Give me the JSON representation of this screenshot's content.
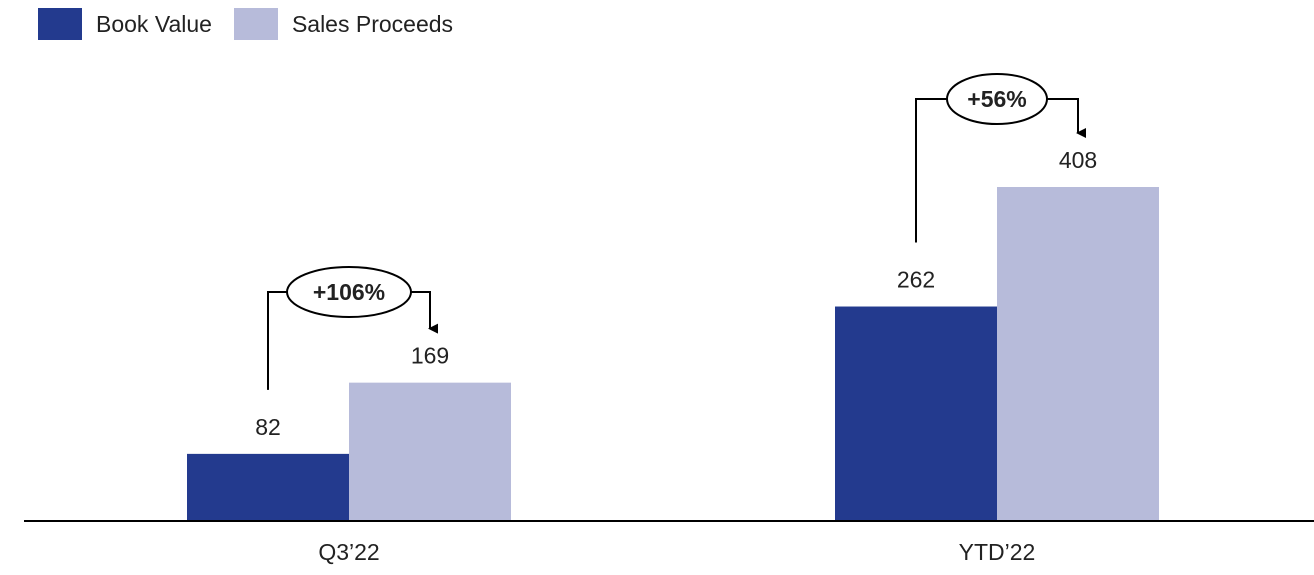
{
  "colors": {
    "book_value": "#233A8E",
    "sales_proceeds": "#B7BBDA",
    "axis": "#000000",
    "text": "#222222"
  },
  "legend": [
    {
      "name": "Book Value",
      "color": "#233A8E"
    },
    {
      "name": "Sales Proceeds",
      "color": "#B7BBDA"
    }
  ],
  "chart_data": {
    "type": "bar",
    "categories": [
      "Q3’22",
      "YTD’22"
    ],
    "series": [
      {
        "name": "Book Value",
        "values": [
          82,
          262
        ]
      },
      {
        "name": "Sales Proceeds",
        "values": [
          169,
          408
        ]
      }
    ],
    "annotations": [
      "+106%",
      "+56%"
    ],
    "title": "",
    "xlabel": "",
    "ylabel": "",
    "ylim": [
      0,
      408
    ],
    "grid": false,
    "legend_position": "top-left"
  }
}
